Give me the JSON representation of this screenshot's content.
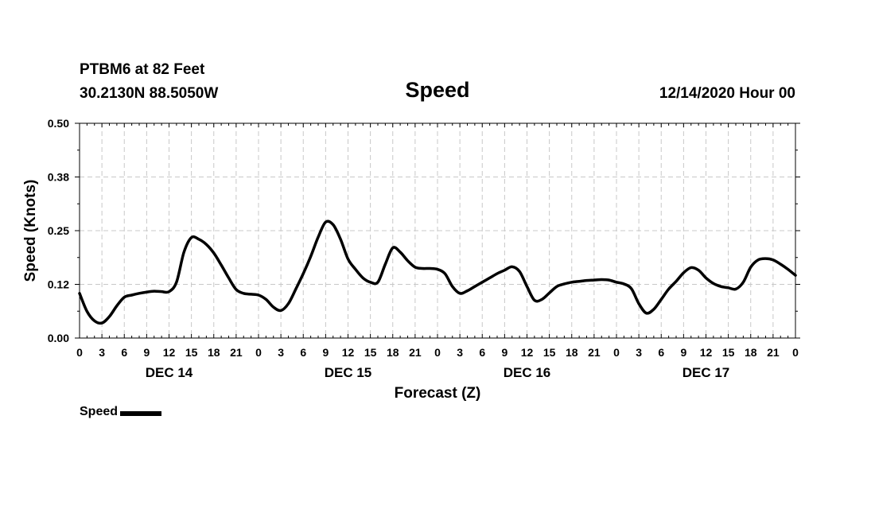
{
  "header": {
    "station": "PTBM6 at 82 Feet",
    "coords": "30.2130N 88.5050W",
    "title": "Speed",
    "runtime": "12/14/2020 Hour 00"
  },
  "legend": {
    "label": "Speed",
    "color": "#000000"
  },
  "chart_data": {
    "type": "line",
    "title": "Speed",
    "xlabel": "Forecast (Z)",
    "ylabel": "Speed (Knots)",
    "x_unit": "forecast hour",
    "xlim": [
      0,
      96
    ],
    "ylim": [
      0,
      0.5
    ],
    "y_ticks": [
      0.0,
      0.125,
      0.25,
      0.375,
      0.5
    ],
    "y_tick_labels": [
      "0.00",
      "0.12",
      "0.25",
      "0.38",
      "0.50"
    ],
    "x_tick_labels": [
      "0",
      "3",
      "6",
      "9",
      "12",
      "15",
      "18",
      "21",
      "0",
      "3",
      "6",
      "9",
      "12",
      "15",
      "18",
      "21",
      "0",
      "3",
      "6",
      "9",
      "12",
      "15",
      "18",
      "21",
      "0",
      "3",
      "6",
      "9",
      "12",
      "15",
      "18",
      "21",
      "0"
    ],
    "day_labels": [
      {
        "label": "DEC 14",
        "hour": 12
      },
      {
        "label": "DEC 15",
        "hour": 36
      },
      {
        "label": "DEC 16",
        "hour": 60
      },
      {
        "label": "DEC 17",
        "hour": 84
      }
    ],
    "grid": true,
    "legend_position": "bottom-left",
    "series": [
      {
        "name": "Speed",
        "color": "#000000",
        "x": [
          0,
          1,
          2,
          3,
          4,
          5,
          6,
          7,
          8,
          9,
          10,
          11,
          12,
          13,
          14,
          15,
          16,
          17,
          18,
          19,
          20,
          21,
          22,
          23,
          24,
          25,
          26,
          27,
          28,
          29,
          30,
          31,
          32,
          33,
          34,
          35,
          36,
          37,
          38,
          39,
          40,
          41,
          42,
          43,
          44,
          45,
          46,
          47,
          48,
          49,
          50,
          51,
          52,
          53,
          54,
          55,
          56,
          57,
          58,
          59,
          60,
          61,
          62,
          63,
          64,
          65,
          66,
          67,
          68,
          69,
          70,
          71,
          72,
          73,
          74,
          75,
          76,
          77,
          78,
          79,
          80,
          81,
          82,
          83,
          84,
          85,
          86,
          87,
          88,
          89,
          90,
          91,
          92,
          93,
          94,
          95,
          96
        ],
        "values": [
          0.104,
          0.062,
          0.04,
          0.035,
          0.05,
          0.075,
          0.095,
          0.1,
          0.104,
          0.107,
          0.109,
          0.108,
          0.108,
          0.13,
          0.2,
          0.234,
          0.23,
          0.218,
          0.198,
          0.17,
          0.14,
          0.113,
          0.104,
          0.102,
          0.1,
          0.09,
          0.072,
          0.064,
          0.08,
          0.114,
          0.15,
          0.19,
          0.235,
          0.27,
          0.264,
          0.23,
          0.184,
          0.16,
          0.14,
          0.13,
          0.13,
          0.172,
          0.21,
          0.2,
          0.18,
          0.165,
          0.162,
          0.162,
          0.16,
          0.15,
          0.12,
          0.104,
          0.11,
          0.12,
          0.13,
          0.14,
          0.15,
          0.158,
          0.166,
          0.155,
          0.12,
          0.088,
          0.09,
          0.105,
          0.12,
          0.126,
          0.13,
          0.132,
          0.134,
          0.135,
          0.136,
          0.135,
          0.13,
          0.126,
          0.115,
          0.08,
          0.058,
          0.067,
          0.09,
          0.114,
          0.132,
          0.152,
          0.164,
          0.158,
          0.14,
          0.127,
          0.12,
          0.117,
          0.114,
          0.13,
          0.165,
          0.182,
          0.185,
          0.182,
          0.172,
          0.16,
          0.146
        ]
      }
    ]
  }
}
